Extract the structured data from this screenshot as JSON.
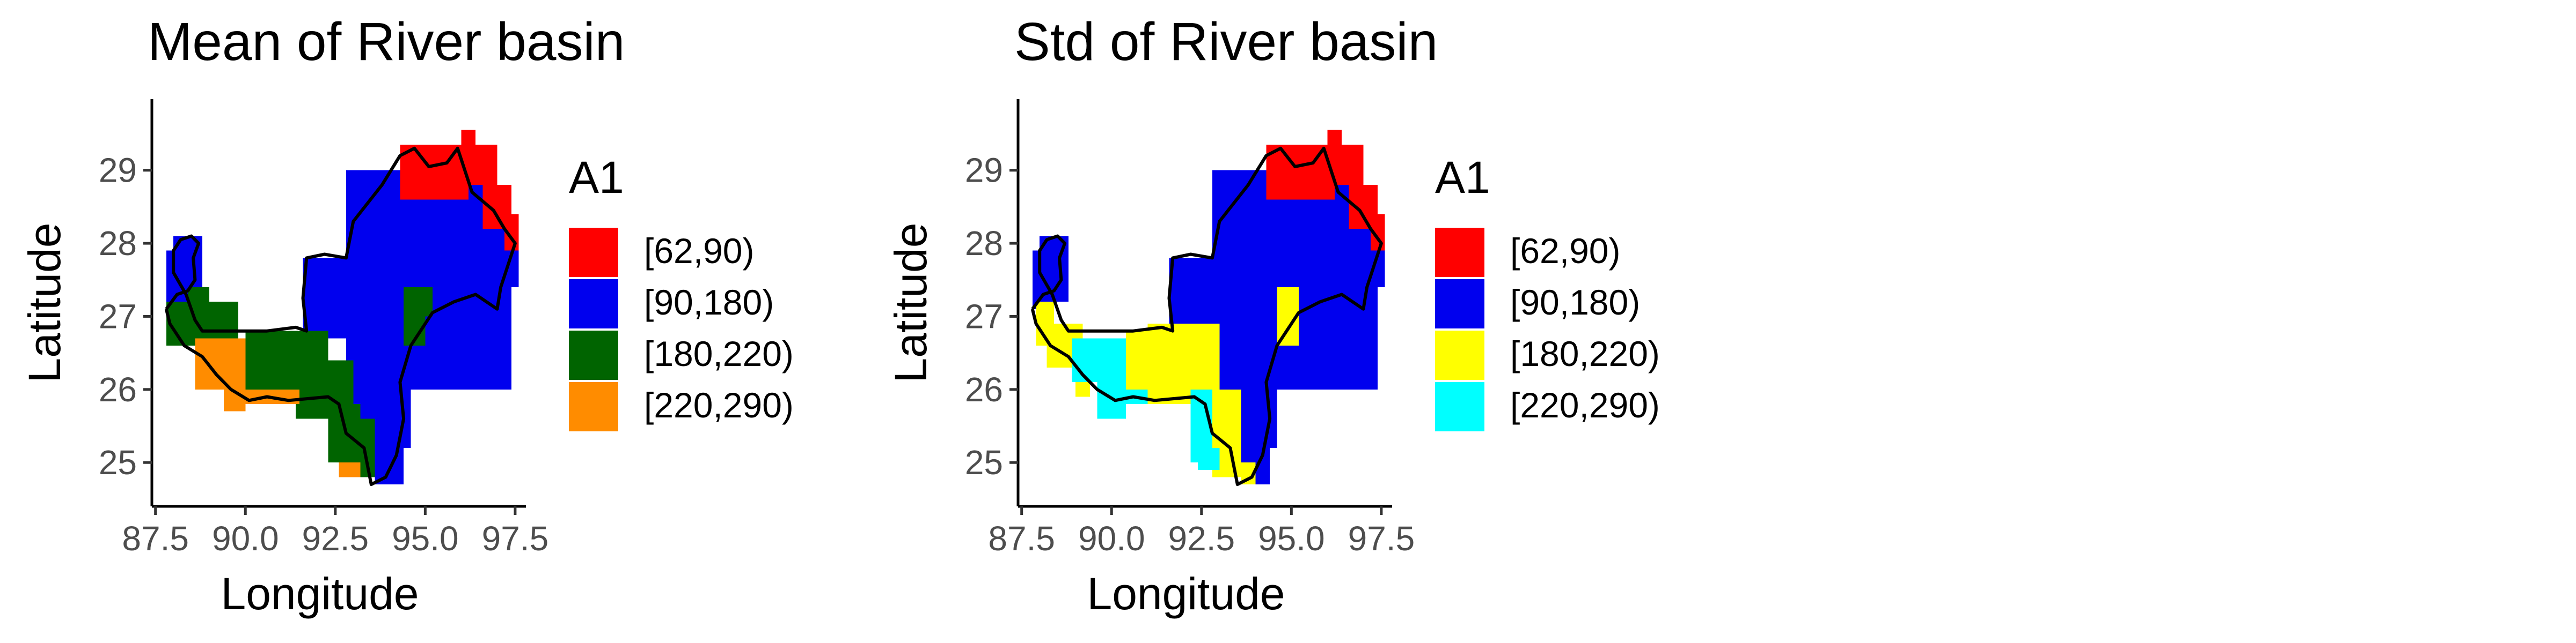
{
  "chart_data": [
    {
      "type": "heatmap",
      "title": "Mean of River basin",
      "xlabel": "Longitude",
      "ylabel": "Latitude",
      "xticks": [
        "87.5",
        "90.0",
        "92.5",
        "95.0",
        "97.5"
      ],
      "yticks": [
        "25",
        "26",
        "27",
        "28",
        "29"
      ],
      "xlim": [
        87.4,
        97.8
      ],
      "ylim": [
        24.4,
        29.9
      ],
      "grid": false,
      "legend": {
        "title": "A1",
        "placement": "right",
        "entries": [
          {
            "label": "[62,90)",
            "color": "#FF0000"
          },
          {
            "label": "[90,180)",
            "color": "#0000EE"
          },
          {
            "label": "[180,220)",
            "color": "#006400"
          },
          {
            "label": "[220,290)",
            "color": "#FF8C00"
          }
        ]
      },
      "layers": [
        {
          "class": "[90,180)",
          "rects": [
            [
              87.8,
              27.1,
              88.0,
              27.9
            ],
            [
              88.0,
              27.2,
              88.8,
              28.1
            ],
            [
              91.6,
              26.7,
              93.0,
              27.8
            ],
            [
              92.8,
              25.2,
              94.6,
              29.0
            ],
            [
              94.2,
              26.0,
              97.4,
              28.8
            ],
            [
              93.6,
              24.7,
              94.4,
              25.4
            ],
            [
              97.0,
              27.4,
              97.6,
              28.2
            ]
          ]
        },
        {
          "class": "[62,90)",
          "rects": [
            [
              94.3,
              28.6,
              96.2,
              29.35
            ],
            [
              95.8,
              28.8,
              97.0,
              29.35
            ],
            [
              96.0,
              29.35,
              96.4,
              29.55
            ],
            [
              96.6,
              28.2,
              97.4,
              28.8
            ],
            [
              97.2,
              27.9,
              97.6,
              28.4
            ]
          ]
        },
        {
          "class": "[180,220)",
          "rects": [
            [
              87.8,
              26.6,
              89.8,
              27.2
            ],
            [
              88.4,
              27.2,
              89.0,
              27.4
            ],
            [
              90.0,
              26.0,
              92.3,
              26.8
            ],
            [
              91.4,
              25.6,
              93.0,
              26.4
            ],
            [
              92.3,
              25.0,
              93.2,
              25.8
            ],
            [
              93.2,
              24.8,
              93.6,
              25.6
            ],
            [
              94.4,
              26.6,
              95.0,
              27.4
            ],
            [
              94.6,
              27.0,
              95.2,
              27.4
            ]
          ]
        },
        {
          "class": "[220,290)",
          "rects": [
            [
              88.6,
              26.0,
              90.0,
              26.7
            ],
            [
              89.4,
              25.7,
              90.0,
              26.1
            ],
            [
              89.8,
              25.8,
              91.5,
              26.0
            ],
            [
              92.6,
              24.8,
              93.2,
              25.0
            ]
          ]
        }
      ]
    },
    {
      "type": "heatmap",
      "title": "Std of River basin",
      "xlabel": "Longitude",
      "ylabel": "Latitude",
      "xticks": [
        "87.5",
        "90.0",
        "92.5",
        "95.0",
        "97.5"
      ],
      "yticks": [
        "25",
        "26",
        "27",
        "28",
        "29"
      ],
      "xlim": [
        87.4,
        97.8
      ],
      "ylim": [
        24.4,
        29.9
      ],
      "grid": false,
      "legend": {
        "title": "A1",
        "placement": "right",
        "entries": [
          {
            "label": "[62,90)",
            "color": "#FF0000"
          },
          {
            "label": "[90,180)",
            "color": "#0000EE"
          },
          {
            "label": "[180,220)",
            "color": "#FFFF00"
          },
          {
            "label": "[220,290)",
            "color": "#00FFFF"
          }
        ]
      },
      "layers": [
        {
          "class": "[90,180)",
          "rects": [
            [
              87.8,
              27.1,
              88.0,
              27.9
            ],
            [
              88.0,
              27.2,
              88.8,
              28.1
            ],
            [
              91.6,
              26.7,
              93.0,
              27.8
            ],
            [
              92.8,
              25.2,
              94.6,
              29.0
            ],
            [
              94.2,
              26.0,
              97.4,
              28.8
            ],
            [
              93.6,
              24.7,
              94.4,
              25.4
            ],
            [
              97.0,
              27.4,
              97.6,
              28.2
            ]
          ]
        },
        {
          "class": "[62,90)",
          "rects": [
            [
              94.3,
              28.6,
              96.2,
              29.35
            ],
            [
              95.8,
              28.8,
              97.0,
              29.35
            ],
            [
              96.0,
              29.35,
              96.4,
              29.55
            ],
            [
              96.6,
              28.2,
              97.4,
              28.8
            ],
            [
              97.2,
              27.9,
              97.6,
              28.4
            ]
          ]
        },
        {
          "class": "[180,220)",
          "rects": [
            [
              87.9,
              26.6,
              88.4,
              27.2
            ],
            [
              88.2,
              26.3,
              89.2,
              26.9
            ],
            [
              89.0,
              25.9,
              89.4,
              26.4
            ],
            [
              90.4,
              25.8,
              91.6,
              26.8
            ],
            [
              91.0,
              25.8,
              93.0,
              26.9
            ],
            [
              92.8,
              24.8,
              93.6,
              26.0
            ],
            [
              93.6,
              24.7,
              94.0,
              25.0
            ],
            [
              94.6,
              26.6,
              95.2,
              27.4
            ]
          ]
        },
        {
          "class": "[220,290)",
          "rects": [
            [
              88.9,
              26.1,
              90.4,
              26.7
            ],
            [
              89.6,
              25.6,
              90.4,
              26.1
            ],
            [
              89.9,
              25.8,
              91.0,
              26.0
            ],
            [
              92.2,
              25.0,
              92.8,
              26.0
            ],
            [
              92.4,
              24.9,
              93.0,
              25.2
            ]
          ]
        }
      ]
    }
  ],
  "basin_outline": [
    [
      87.8,
      27.1
    ],
    [
      88.1,
      27.3
    ],
    [
      88.4,
      27.35
    ],
    [
      88.6,
      27.5
    ],
    [
      88.55,
      27.8
    ],
    [
      88.7,
      28.0
    ],
    [
      88.5,
      28.1
    ],
    [
      88.2,
      28.05
    ],
    [
      88.0,
      27.9
    ],
    [
      88.0,
      27.6
    ],
    [
      88.35,
      27.3
    ],
    [
      88.6,
      26.95
    ],
    [
      88.8,
      26.8
    ],
    [
      89.5,
      26.8
    ],
    [
      90.6,
      26.8
    ],
    [
      91.4,
      26.85
    ],
    [
      91.7,
      26.8
    ],
    [
      91.6,
      27.25
    ],
    [
      91.7,
      27.8
    ],
    [
      92.2,
      27.85
    ],
    [
      92.8,
      27.8
    ],
    [
      93.0,
      28.3
    ],
    [
      93.8,
      28.8
    ],
    [
      94.3,
      29.2
    ],
    [
      94.7,
      29.3
    ],
    [
      95.1,
      29.05
    ],
    [
      95.6,
      29.1
    ],
    [
      95.9,
      29.3
    ],
    [
      96.1,
      29.0
    ],
    [
      96.3,
      28.7
    ],
    [
      96.9,
      28.45
    ],
    [
      97.2,
      28.2
    ],
    [
      97.5,
      28.0
    ],
    [
      97.3,
      27.7
    ],
    [
      97.1,
      27.4
    ],
    [
      97.0,
      27.1
    ],
    [
      96.4,
      27.3
    ],
    [
      95.8,
      27.2
    ],
    [
      95.2,
      27.05
    ],
    [
      94.6,
      26.6
    ],
    [
      94.3,
      26.1
    ],
    [
      94.4,
      25.6
    ],
    [
      94.2,
      25.1
    ],
    [
      93.9,
      24.8
    ],
    [
      93.5,
      24.7
    ],
    [
      93.3,
      25.2
    ],
    [
      92.8,
      25.4
    ],
    [
      92.6,
      25.8
    ],
    [
      92.3,
      25.9
    ],
    [
      91.2,
      25.85
    ],
    [
      90.6,
      25.9
    ],
    [
      90.1,
      25.85
    ],
    [
      89.6,
      26.0
    ],
    [
      89.2,
      26.2
    ],
    [
      88.8,
      26.45
    ],
    [
      88.3,
      26.6
    ],
    [
      87.9,
      26.9
    ],
    [
      87.8,
      27.1
    ]
  ]
}
